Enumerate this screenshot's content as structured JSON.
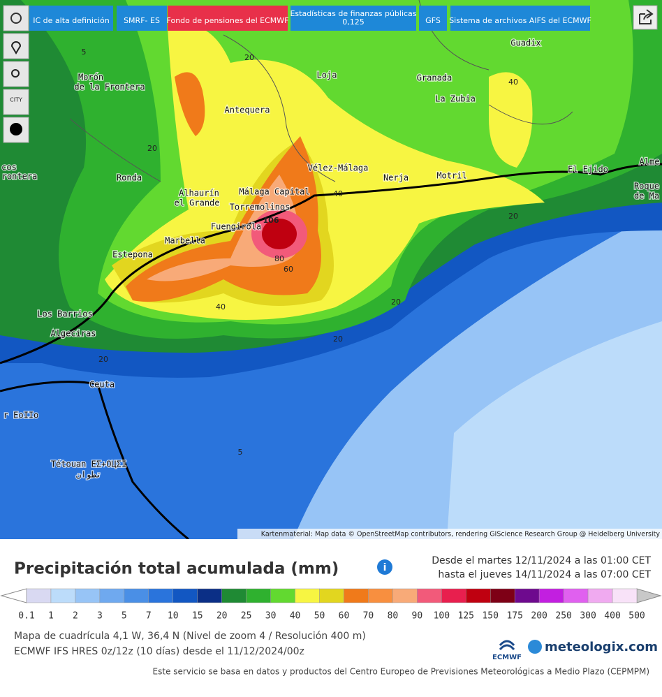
{
  "toolbar": {
    "buttons": [
      "IC de alta definición",
      "SMRF- ES",
      "Fondo de pensiones del ECMWF",
      "Estadísticas de finanzas públicas",
      "GFS",
      "Sistema de archivos AIFS del ECMWF"
    ],
    "stat_value": "0,125",
    "city_icon": "CITY"
  },
  "map": {
    "places": [
      "Guadix",
      "Loja",
      "Granada",
      "La Zubia",
      "Antequera",
      "Morón",
      "de la Frontera",
      "Ronda",
      "Vélez-Málaga",
      "Nerja",
      "Motril",
      "El Ejido",
      "Alhaurín",
      "el Grande",
      "Málaga Capital",
      "Torremolinos",
      "Fuengirola",
      "Marbella",
      "Estepona",
      "Los Barrios",
      "Algeciras",
      "Ceuta",
      "Tétouan ΕΣ+ΟЦΣΙ",
      "تطوان",
      "Alme",
      "Roque",
      "de Ma",
      "cos",
      "rontera",
      "r EoIIo"
    ],
    "contour_labels": [
      "5",
      "20",
      "20",
      "40",
      "40",
      "20",
      "106",
      "80",
      "60",
      "40",
      "20",
      "20",
      "20",
      "5"
    ],
    "attribution": "Kartenmaterial: Map data © OpenStreetMap contributors, rendering GIScience Research Group @ Heidelberg University"
  },
  "legend": {
    "title": "Precipitación total acumulada (mm)",
    "period_from": "Desde el martes 12/11/2024 a  las 01:00 CET",
    "period_to": "hasta el jueves 14/11/2024 a  las 07:00 CET",
    "ticks": [
      "0.1",
      "1",
      "2",
      "3",
      "5",
      "7",
      "10",
      "15",
      "20",
      "25",
      "30",
      "40",
      "50",
      "60",
      "70",
      "80",
      "90",
      "100",
      "125",
      "150",
      "175",
      "200",
      "250",
      "300",
      "400",
      "500"
    ],
    "colors": [
      "#d9d9f2",
      "#bcdcfa",
      "#97c4f6",
      "#6fa9ef",
      "#4a8fe6",
      "#2a74dc",
      "#1257c2",
      "#0b2f86",
      "#1f8a34",
      "#2fb12f",
      "#62d930",
      "#f7f542",
      "#e2d61f",
      "#f07a1a",
      "#f88f3f",
      "#f8aa78",
      "#f25a7a",
      "#e81f4e",
      "#bf0010",
      "#7e0016",
      "#6e0a8e",
      "#c21fe0",
      "#e060ef",
      "#f0aaf0",
      "#f8e2f8"
    ]
  },
  "footer": {
    "grid_info": "Mapa de cuadrícula 4,1 W, 36,4 N (Nivel de zoom 4 / Resolución 400 m)",
    "model_info": "ECMWF IFS HRES 0z/12z (10 días) desde el 11/12/2024/00z",
    "ecmwf": "ECMWF",
    "brand": "meteologix.com",
    "source": "Este servicio se basa en datos y productos del Centro Europeo de Previsiones Meteorológicas a Medio Plazo (CEPMPM)"
  }
}
